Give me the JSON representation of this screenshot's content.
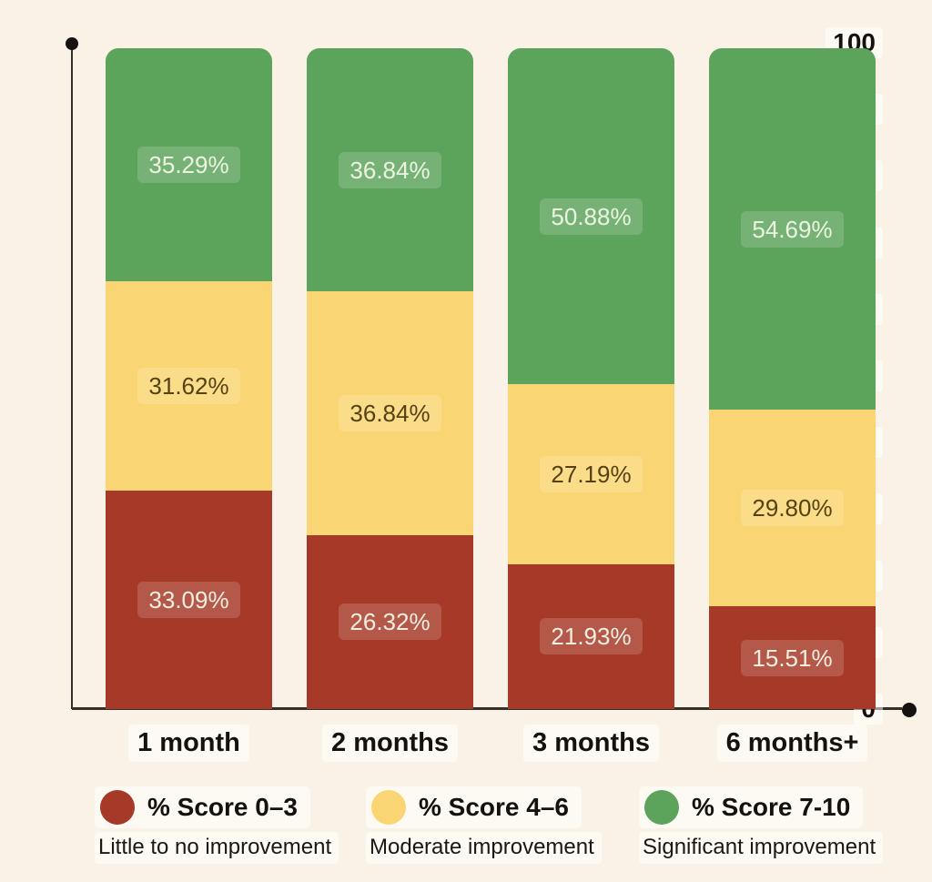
{
  "page": {
    "background_color": "#FBF2E7",
    "axis_color": "#33302C",
    "axis_dot_color": "#15120F",
    "text_color": "#14110E"
  },
  "chart_data": {
    "type": "bar",
    "stacked": true,
    "title": "",
    "xlabel": "",
    "ylabel": "",
    "categories": [
      "1 month",
      "2 months",
      "3 months",
      "6 months+"
    ],
    "series": [
      {
        "name": "% Score 0–3",
        "description": "Little to no improvement",
        "color": "#A63928",
        "label_color": "#F6EFE1",
        "values": [
          33.09,
          26.32,
          21.93,
          15.51
        ]
      },
      {
        "name": "% Score 4–6",
        "description": "Moderate improvement",
        "color": "#F9D673",
        "label_color": "#544214",
        "values": [
          31.62,
          36.84,
          27.19,
          29.8
        ]
      },
      {
        "name": "% Score 7-10",
        "description": "Significant improvement",
        "color": "#5CA45C",
        "label_color": "#EDF4E2",
        "values": [
          35.29,
          36.84,
          50.88,
          54.69
        ]
      }
    ],
    "value_suffix": "%",
    "value_decimals": 2,
    "ylim": [
      0,
      100
    ],
    "yticks": [
      0,
      10,
      20,
      30,
      40,
      50,
      60,
      70,
      80,
      90,
      100
    ],
    "grid": false,
    "legend_position": "bottom"
  }
}
